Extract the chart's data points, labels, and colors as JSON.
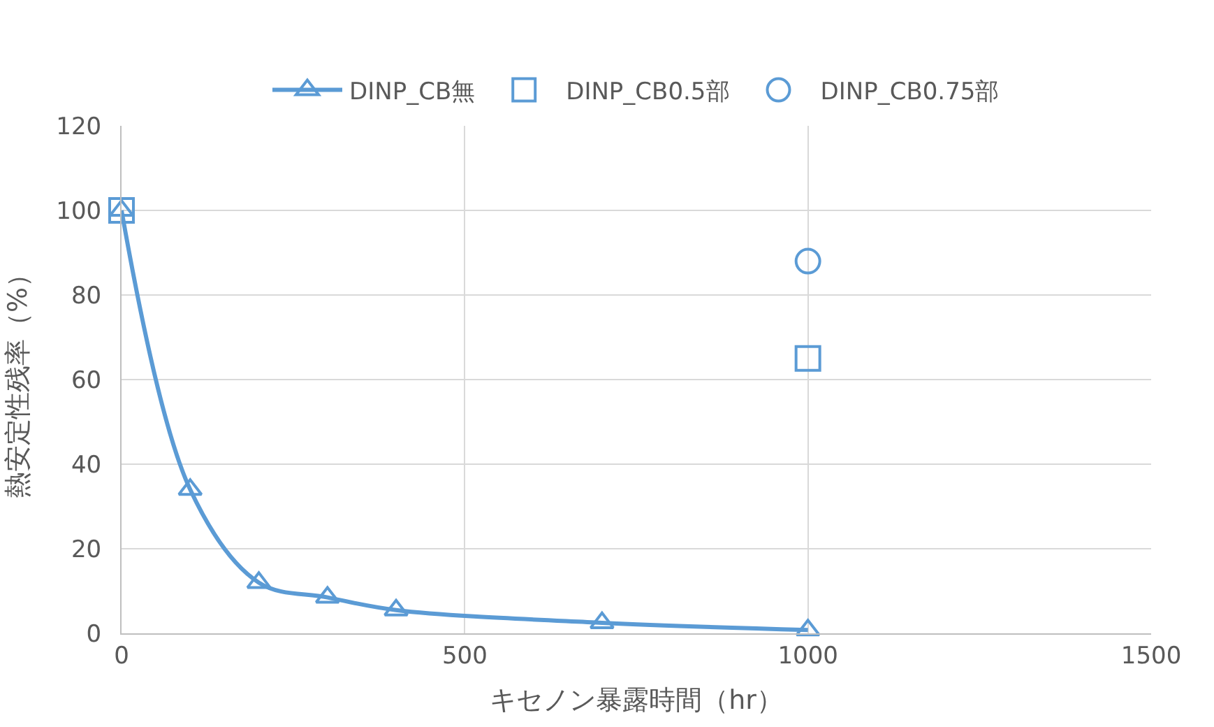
{
  "chart_data": {
    "type": "line",
    "xlabel": "キセノン暴露時間（hr）",
    "ylabel": "熱安定性残率（%）",
    "series": [
      {
        "name": "DINP_CB無",
        "color": "#5b9bd5",
        "marker": "triangle",
        "x": [
          0,
          100,
          200,
          300,
          400,
          700,
          1000
        ],
        "values": [
          100,
          34,
          12,
          8.5,
          5.5,
          2.5,
          0.8
        ]
      },
      {
        "name": "DINP_CB0.5部",
        "type": "scatter",
        "color": "#5b9bd5",
        "marker": "square",
        "x": [
          0,
          1000
        ],
        "values": [
          100,
          65
        ]
      },
      {
        "name": "DINP_CB0.75部",
        "type": "scatter",
        "color": "#5b9bd5",
        "marker": "circle",
        "x": [
          1000
        ],
        "values": [
          88
        ]
      }
    ],
    "xlim": [
      0,
      1500
    ],
    "xticks": [
      0,
      500,
      1000,
      1500
    ],
    "ylim": [
      0,
      120
    ],
    "yticks": [
      0,
      20,
      40,
      60,
      80,
      100,
      120
    ],
    "grid": true,
    "legend": "top"
  }
}
